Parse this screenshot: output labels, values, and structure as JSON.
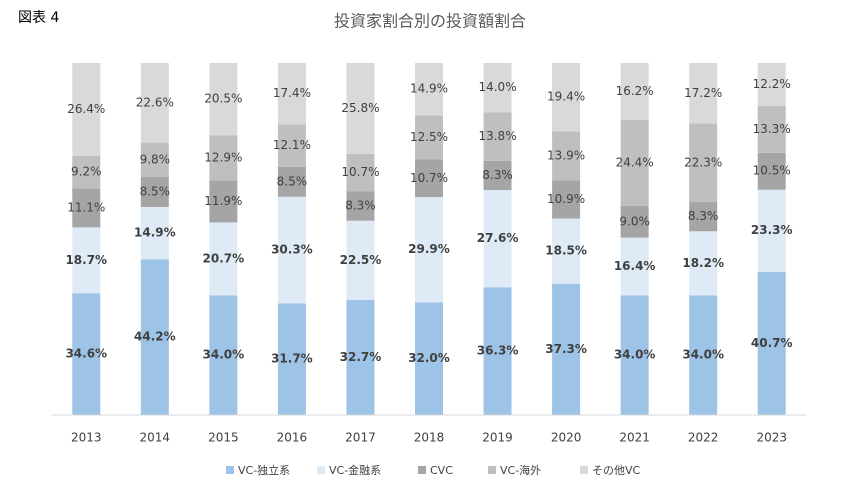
{
  "figure_label": "図表 4",
  "chart_data": {
    "type": "stacked_bar",
    "title": "投資家割合別の投資額割合",
    "categories": [
      "2013",
      "2014",
      "2015",
      "2016",
      "2017",
      "2018",
      "2019",
      "2020",
      "2021",
      "2022",
      "2023"
    ],
    "ylim": [
      0,
      100
    ],
    "series": [
      {
        "name": "VC-独立系",
        "color": "#9dc3e6",
        "values": [
          34.6,
          44.2,
          34,
          31.7,
          32.7,
          32,
          36.3,
          37.3,
          34,
          34,
          40.7
        ],
        "value_labels": [
          "34.6%",
          "44.2%",
          "34.0%",
          "31.7%",
          "32.7%",
          "32.0%",
          "36.3%",
          "37.3%",
          "34.0%",
          "34.0%",
          "40.7%"
        ]
      },
      {
        "name": "VC-金融系",
        "color": "#deebf7",
        "values": [
          18.7,
          14.9,
          20.7,
          30.3,
          22.5,
          29.9,
          27.6,
          18.5,
          16.4,
          18.2,
          23.3
        ],
        "value_labels": [
          "18.7%",
          "14.9%",
          "20.7%",
          "30.3%",
          "22.5%",
          "29.9%",
          "27.6%",
          "18.5%",
          "16.4%",
          "18.2%",
          "23.3%"
        ]
      },
      {
        "name": "CVC",
        "color": "#a5a5a5",
        "values": [
          11.1,
          8.5,
          11.9,
          8.5,
          8.3,
          10.7,
          8.3,
          10.9,
          9,
          8.3,
          10.5
        ],
        "value_labels": [
          "11.1%",
          "8.5%",
          "11.9%",
          "8.5%",
          "8.3%",
          "10.7%",
          "8.3%",
          "10.9%",
          "9.0%",
          "8.3%",
          "10.5%"
        ]
      },
      {
        "name": "VC-海外",
        "color": "#bfbfbf",
        "values": [
          9.2,
          9.8,
          12.9,
          12.1,
          10.7,
          12.5,
          13.8,
          13.9,
          24.4,
          22.3,
          13.3
        ],
        "value_labels": [
          "9.2%",
          "9.8%",
          "12.9%",
          "12.1%",
          "10.7%",
          "12.5%",
          "13.8%",
          "13.9%",
          "24.4%",
          "22.3%",
          "13.3%"
        ]
      },
      {
        "name": "その他VC",
        "color": "#d9d9d9",
        "values": [
          26.4,
          22.6,
          20.5,
          17.4,
          25.8,
          14.9,
          14,
          19.4,
          16.2,
          17.2,
          12.2
        ],
        "value_labels": [
          "26.4%",
          "22.6%",
          "20.5%",
          "17.4%",
          "25.8%",
          "14.9%",
          "14.0%",
          "19.4%",
          "16.2%",
          "17.2%",
          "12.2%"
        ]
      }
    ],
    "legend": "bottom"
  }
}
